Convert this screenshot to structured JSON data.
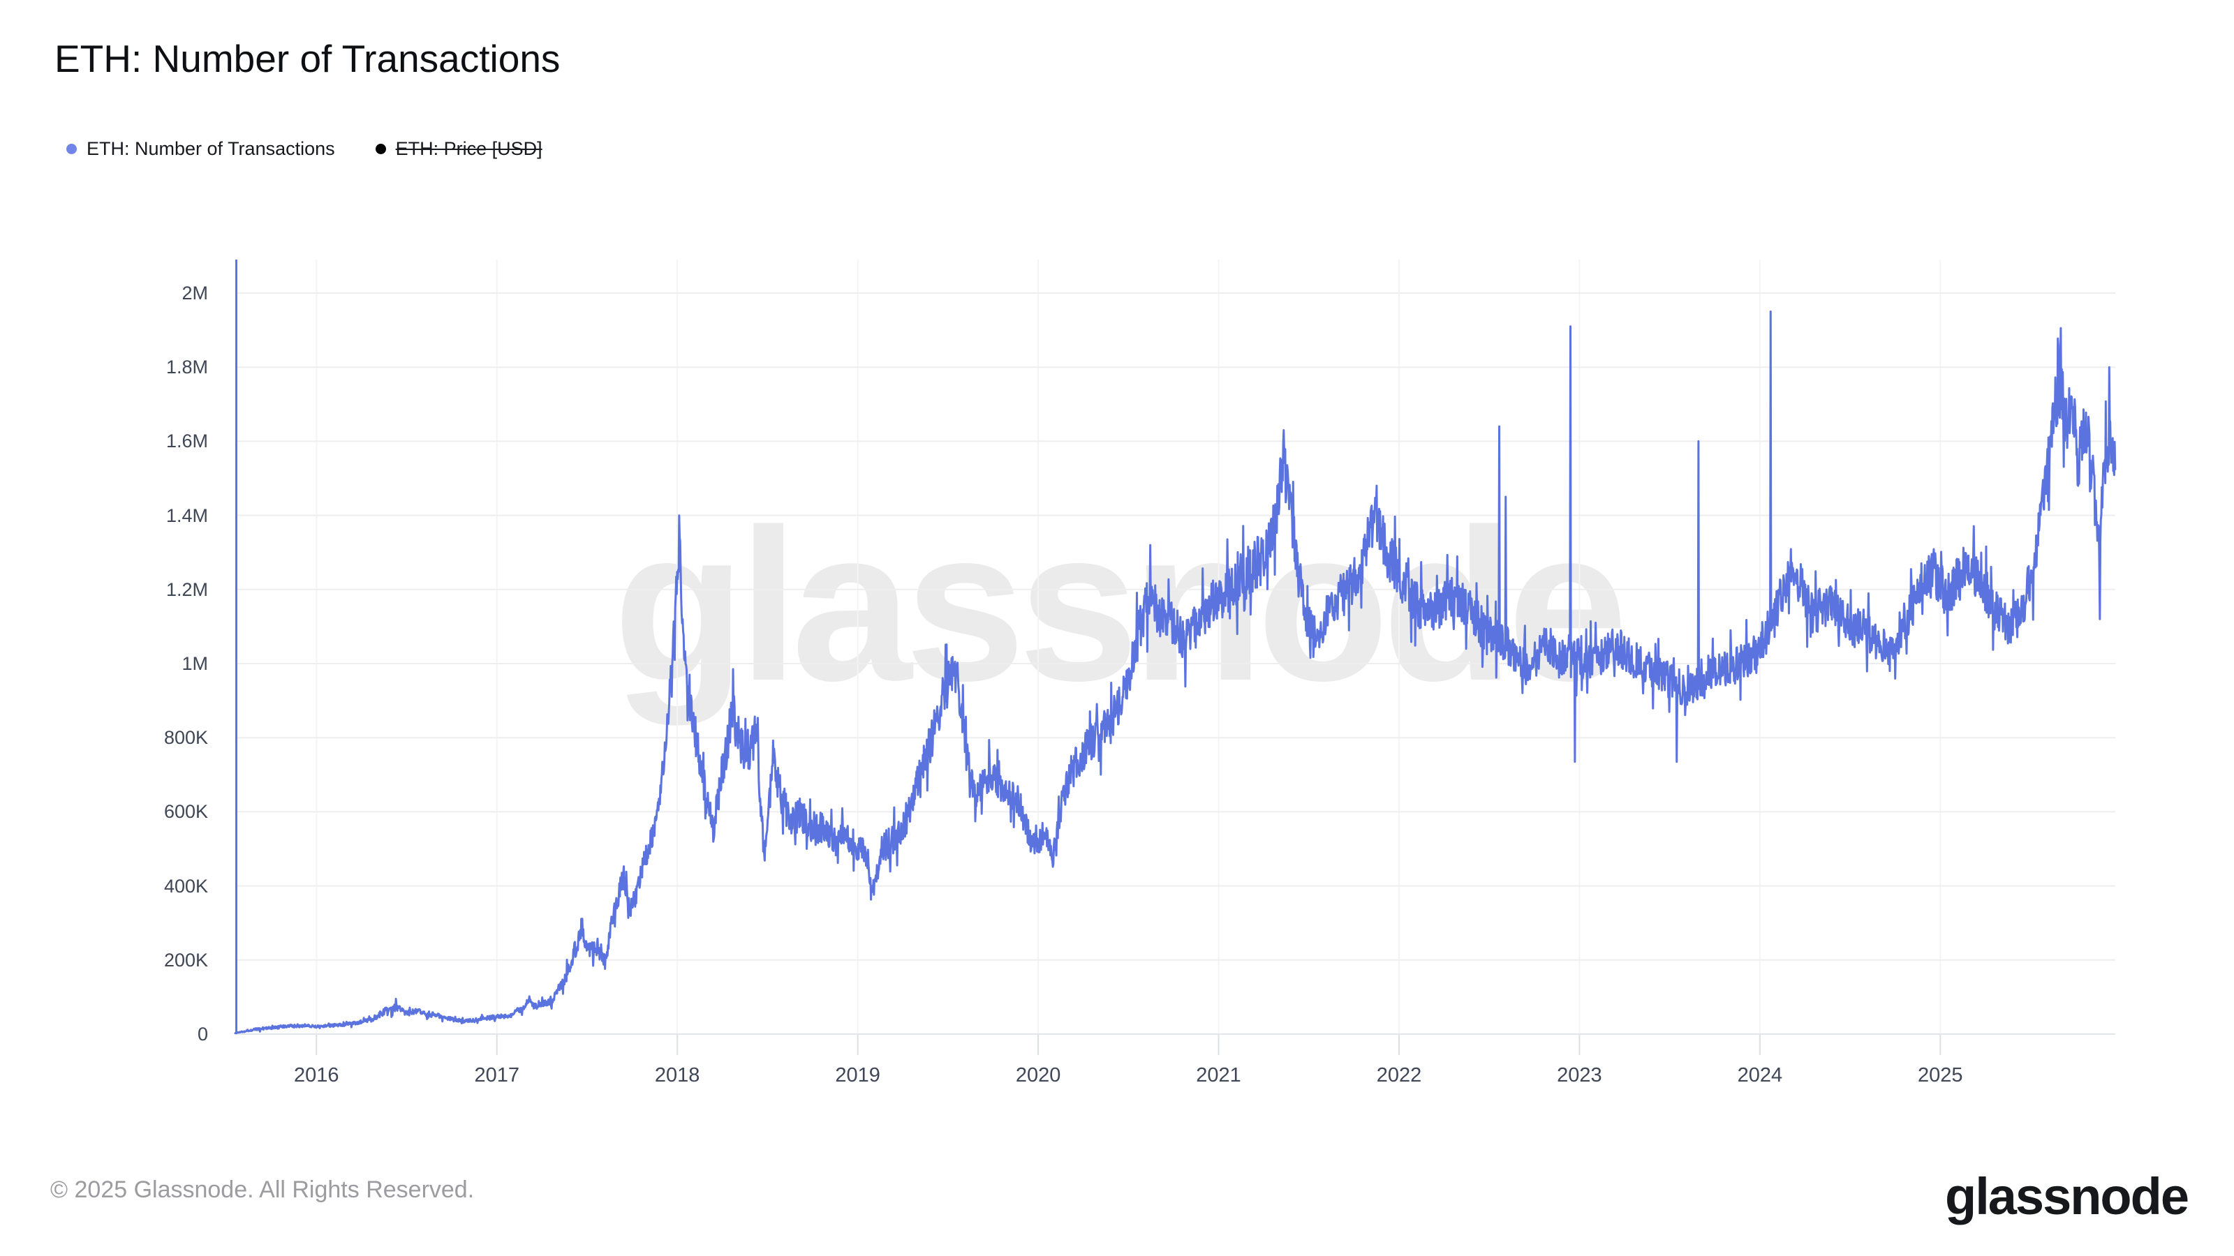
{
  "header": {
    "title": "ETH: Number of Transactions"
  },
  "legend": {
    "items": [
      {
        "label": "ETH: Number of Transactions",
        "color": "#7185e8",
        "active": true
      },
      {
        "label": "ETH: Price [USD]",
        "color": "#000000",
        "active": false
      }
    ]
  },
  "watermark": {
    "text": "glassnode"
  },
  "footer": {
    "copyright": "© 2025 Glassnode. All Rights Reserved.",
    "logo_text": "glassnode"
  },
  "chart_data": {
    "type": "line",
    "title": "ETH: Number of Transactions",
    "series_name": "ETH: Number of Transactions",
    "line_color": "#5b73de",
    "axis_color": "#5b74df",
    "grid_color": "#eeeeef",
    "baseline_color": "#e2e5e9",
    "tick_color": "#dcdfe4",
    "year_grid_color": "#f4f4f6",
    "x_range": [
      2015.55,
      2025.97
    ],
    "ylim": [
      0,
      2000000
    ],
    "grid": true,
    "legend_position": "top-left",
    "y_axis": {
      "tick_values": [
        0,
        200,
        400,
        600,
        800,
        1000,
        1200,
        1400,
        1600,
        1800,
        2000
      ],
      "tick_labels": [
        "0",
        "200K",
        "400K",
        "600K",
        "800K",
        "1M",
        "1.2M",
        "1.4M",
        "1.6M",
        "1.8M",
        "2M"
      ]
    },
    "x_axis": {
      "tick_values": [
        2016,
        2017,
        2018,
        2019,
        2020,
        2021,
        2022,
        2023,
        2024,
        2025
      ],
      "tick_labels": [
        "2016",
        "2017",
        "2018",
        "2019",
        "2020",
        "2021",
        "2022",
        "2023",
        "2024",
        "2025"
      ]
    },
    "value_unit": "transactions per day",
    "keypoint_value_scale": 1000,
    "keypoints": [
      [
        2015.55,
        3
      ],
      [
        2015.6,
        8
      ],
      [
        2015.65,
        12
      ],
      [
        2015.75,
        17
      ],
      [
        2015.85,
        21
      ],
      [
        2015.95,
        24
      ],
      [
        2016.0,
        20
      ],
      [
        2016.1,
        24
      ],
      [
        2016.2,
        28
      ],
      [
        2016.3,
        38
      ],
      [
        2016.38,
        62
      ],
      [
        2016.44,
        72
      ],
      [
        2016.5,
        58
      ],
      [
        2016.56,
        60
      ],
      [
        2016.65,
        52
      ],
      [
        2016.75,
        40
      ],
      [
        2016.82,
        34
      ],
      [
        2016.9,
        42
      ],
      [
        2017.0,
        46
      ],
      [
        2017.08,
        52
      ],
      [
        2017.14,
        70
      ],
      [
        2017.18,
        88
      ],
      [
        2017.22,
        72
      ],
      [
        2017.3,
        90
      ],
      [
        2017.38,
        150
      ],
      [
        2017.44,
        240
      ],
      [
        2017.47,
        295
      ],
      [
        2017.5,
        230
      ],
      [
        2017.55,
        245
      ],
      [
        2017.6,
        200
      ],
      [
        2017.65,
        330
      ],
      [
        2017.7,
        430
      ],
      [
        2017.74,
        330
      ],
      [
        2017.78,
        390
      ],
      [
        2017.82,
        470
      ],
      [
        2017.86,
        530
      ],
      [
        2017.9,
        620
      ],
      [
        2017.93,
        760
      ],
      [
        2017.96,
        930
      ],
      [
        2017.99,
        1180
      ],
      [
        2018.012,
        1340
      ],
      [
        2018.03,
        1120
      ],
      [
        2018.05,
        950
      ],
      [
        2018.08,
        860
      ],
      [
        2018.12,
        740
      ],
      [
        2018.16,
        640
      ],
      [
        2018.2,
        545
      ],
      [
        2018.25,
        720
      ],
      [
        2018.31,
        870
      ],
      [
        2018.35,
        780
      ],
      [
        2018.4,
        760
      ],
      [
        2018.44,
        820
      ],
      [
        2018.48,
        470
      ],
      [
        2018.53,
        740
      ],
      [
        2018.58,
        640
      ],
      [
        2018.63,
        560
      ],
      [
        2018.68,
        600
      ],
      [
        2018.74,
        540
      ],
      [
        2018.8,
        560
      ],
      [
        2018.86,
        520
      ],
      [
        2018.92,
        555
      ],
      [
        2018.98,
        510
      ],
      [
        2019.05,
        480
      ],
      [
        2019.09,
        380
      ],
      [
        2019.13,
        500
      ],
      [
        2019.2,
        525
      ],
      [
        2019.28,
        580
      ],
      [
        2019.34,
        700
      ],
      [
        2019.4,
        780
      ],
      [
        2019.45,
        870
      ],
      [
        2019.5,
        960
      ],
      [
        2019.55,
        985
      ],
      [
        2019.6,
        760
      ],
      [
        2019.65,
        640
      ],
      [
        2019.7,
        690
      ],
      [
        2019.75,
        700
      ],
      [
        2019.8,
        660
      ],
      [
        2019.85,
        640
      ],
      [
        2019.9,
        620
      ],
      [
        2019.95,
        530
      ],
      [
        2020.0,
        500
      ],
      [
        2020.04,
        560
      ],
      [
        2020.08,
        480
      ],
      [
        2020.13,
        620
      ],
      [
        2020.18,
        700
      ],
      [
        2020.25,
        760
      ],
      [
        2020.32,
        800
      ],
      [
        2020.4,
        840
      ],
      [
        2020.48,
        920
      ],
      [
        2020.55,
        1080
      ],
      [
        2020.62,
        1180
      ],
      [
        2020.68,
        1130
      ],
      [
        2020.75,
        1100
      ],
      [
        2020.82,
        1060
      ],
      [
        2020.9,
        1120
      ],
      [
        2020.96,
        1160
      ],
      [
        2021.05,
        1200
      ],
      [
        2021.15,
        1240
      ],
      [
        2021.25,
        1290
      ],
      [
        2021.32,
        1400
      ],
      [
        2021.36,
        1560
      ],
      [
        2021.4,
        1420
      ],
      [
        2021.44,
        1250
      ],
      [
        2021.5,
        1100
      ],
      [
        2021.55,
        1080
      ],
      [
        2021.62,
        1160
      ],
      [
        2021.7,
        1200
      ],
      [
        2021.78,
        1240
      ],
      [
        2021.85,
        1370
      ],
      [
        2021.88,
        1400
      ],
      [
        2021.93,
        1300
      ],
      [
        2022.0,
        1240
      ],
      [
        2022.08,
        1170
      ],
      [
        2022.16,
        1130
      ],
      [
        2022.24,
        1160
      ],
      [
        2022.32,
        1180
      ],
      [
        2022.4,
        1140
      ],
      [
        2022.48,
        1080
      ],
      [
        2022.56,
        1070
      ],
      [
        2022.64,
        1030
      ],
      [
        2022.72,
        980
      ],
      [
        2022.8,
        1050
      ],
      [
        2022.88,
        1010
      ],
      [
        2022.96,
        1030
      ],
      [
        2023.04,
        1000
      ],
      [
        2023.12,
        1020
      ],
      [
        2023.2,
        1050
      ],
      [
        2023.28,
        1020
      ],
      [
        2023.36,
        990
      ],
      [
        2023.44,
        980
      ],
      [
        2023.52,
        945
      ],
      [
        2023.6,
        930
      ],
      [
        2023.68,
        950
      ],
      [
        2023.76,
        975
      ],
      [
        2023.84,
        990
      ],
      [
        2023.92,
        1010
      ],
      [
        2024.0,
        1050
      ],
      [
        2024.08,
        1120
      ],
      [
        2024.14,
        1220
      ],
      [
        2024.18,
        1270
      ],
      [
        2024.25,
        1180
      ],
      [
        2024.32,
        1140
      ],
      [
        2024.4,
        1170
      ],
      [
        2024.48,
        1110
      ],
      [
        2024.56,
        1090
      ],
      [
        2024.64,
        1060
      ],
      [
        2024.72,
        1030
      ],
      [
        2024.8,
        1110
      ],
      [
        2024.88,
        1180
      ],
      [
        2024.96,
        1250
      ],
      [
        2025.04,
        1180
      ],
      [
        2025.1,
        1240
      ],
      [
        2025.16,
        1270
      ],
      [
        2025.24,
        1200
      ],
      [
        2025.32,
        1130
      ],
      [
        2025.4,
        1100
      ],
      [
        2025.46,
        1160
      ],
      [
        2025.52,
        1260
      ],
      [
        2025.58,
        1480
      ],
      [
        2025.64,
        1700
      ],
      [
        2025.67,
        1760
      ],
      [
        2025.7,
        1640
      ],
      [
        2025.73,
        1700
      ],
      [
        2025.77,
        1580
      ],
      [
        2025.81,
        1640
      ],
      [
        2025.85,
        1480
      ],
      [
        2025.88,
        1300
      ],
      [
        2025.91,
        1540
      ],
      [
        2025.94,
        1620
      ],
      [
        2025.965,
        1540
      ]
    ],
    "volatility": [
      [
        2015.55,
        0.3
      ],
      [
        2016.0,
        0.17
      ],
      [
        2016.5,
        0.14
      ],
      [
        2017.0,
        0.13
      ],
      [
        2017.5,
        0.11
      ],
      [
        2017.95,
        0.05
      ],
      [
        2018.1,
        0.07
      ],
      [
        2018.4,
        0.08
      ],
      [
        2018.8,
        0.075
      ],
      [
        2019.2,
        0.08
      ],
      [
        2019.5,
        0.06
      ],
      [
        2019.8,
        0.07
      ],
      [
        2020.2,
        0.07
      ],
      [
        2020.6,
        0.055
      ],
      [
        2021.0,
        0.055
      ],
      [
        2021.4,
        0.055
      ],
      [
        2021.9,
        0.05
      ],
      [
        2022.4,
        0.05
      ],
      [
        2022.9,
        0.05
      ],
      [
        2023.4,
        0.05
      ],
      [
        2023.9,
        0.05
      ],
      [
        2024.4,
        0.05
      ],
      [
        2024.9,
        0.05
      ],
      [
        2025.4,
        0.05
      ],
      [
        2025.96,
        0.045
      ]
    ],
    "spikes": [
      [
        2016.44,
        95
      ],
      [
        2017.18,
        102
      ],
      [
        2018.012,
        1340
      ],
      [
        2018.31,
        985
      ],
      [
        2019.53,
        995
      ],
      [
        2020.62,
        1320
      ],
      [
        2021.36,
        1630
      ],
      [
        2021.875,
        1480
      ],
      [
        2022.555,
        1640
      ],
      [
        2022.59,
        1450
      ],
      [
        2022.95,
        1910
      ],
      [
        2022.975,
        735
      ],
      [
        2023.54,
        735
      ],
      [
        2023.66,
        1600
      ],
      [
        2024.06,
        1950
      ],
      [
        2025.655,
        1860
      ],
      [
        2025.885,
        1120
      ],
      [
        2025.935,
        1800
      ]
    ],
    "seed": 1337
  }
}
